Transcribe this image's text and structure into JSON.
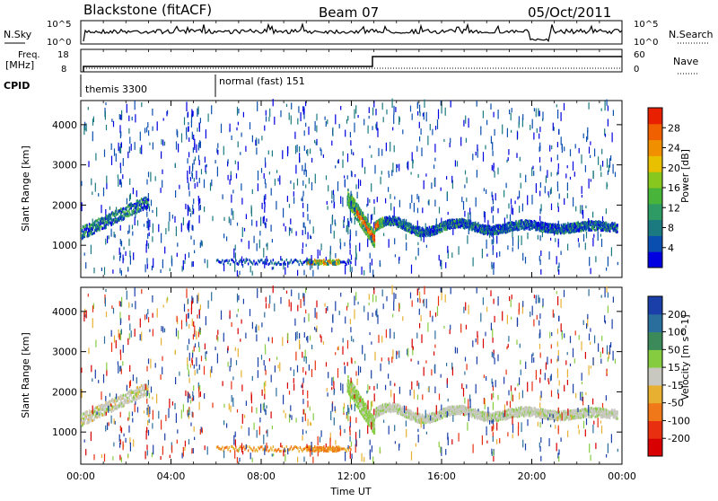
{
  "header": {
    "station": "Blackstone (fitACF)",
    "beam": "Beam 07",
    "date": "05/Oct/2011"
  },
  "noise_panel": {
    "left_label": "N.Sky",
    "left_ticks": [
      "10^5",
      "10^0"
    ],
    "right_ticks": [
      "10^5",
      "10^0"
    ],
    "right_label": "N.Search"
  },
  "freq_panel": {
    "left_label_line1": "Freq.",
    "left_label_line2": "[MHz]",
    "left_ticks": [
      "18",
      "8"
    ],
    "right_ticks": [
      "60",
      "0"
    ],
    "right_label": "Nave"
  },
  "cpid_panel": {
    "label": "CPID",
    "modes": [
      {
        "name": "themis 3300",
        "start_hour": 0
      },
      {
        "name": "normal (fast) 151",
        "start_hour": 6
      }
    ]
  },
  "chart_data": [
    {
      "type": "heatmap",
      "name": "power",
      "ylabel": "Slant Range [km]",
      "xlabel": "Time UT",
      "xlim_hours": [
        0,
        24
      ],
      "ylim_km": [
        200,
        4600
      ],
      "y_ticks": [
        "1000",
        "2000",
        "3000",
        "4000"
      ],
      "x_ticks": [
        "00:00",
        "04:00",
        "08:00",
        "12:00",
        "16:00",
        "20:00",
        "00:00"
      ],
      "colorbar": {
        "label": "Power [dB]",
        "range": [
          0,
          32
        ],
        "ticks": [
          "4",
          "8",
          "12",
          "16",
          "20",
          "24",
          "28"
        ],
        "colors": [
          "#0000e0",
          "#0a4fb0",
          "#1a7a80",
          "#2e9a64",
          "#48b43a",
          "#88c81e",
          "#e8c000",
          "#f09000",
          "#f06000",
          "#e82000"
        ]
      }
    },
    {
      "type": "heatmap",
      "name": "velocity",
      "ylabel": "Slant Range [km]",
      "xlabel": "Time UT",
      "xlim_hours": [
        0,
        24
      ],
      "ylim_km": [
        200,
        4600
      ],
      "y_ticks": [
        "1000",
        "2000",
        "3000",
        "4000"
      ],
      "x_ticks": [
        "00:00",
        "04:00",
        "08:00",
        "12:00",
        "16:00",
        "20:00",
        "00:00"
      ],
      "colorbar": {
        "label": "Velocity [m s^-1]",
        "ticks": [
          "200",
          "100",
          "50",
          "15",
          "-15",
          "-50",
          "-100",
          "-200"
        ],
        "colors": [
          "#1a3fa8",
          "#2a6e9e",
          "#3c8a5a",
          "#86cc40",
          "#c8c8c0",
          "#e8b030",
          "#f07818",
          "#e83010",
          "#d80000"
        ]
      }
    }
  ]
}
